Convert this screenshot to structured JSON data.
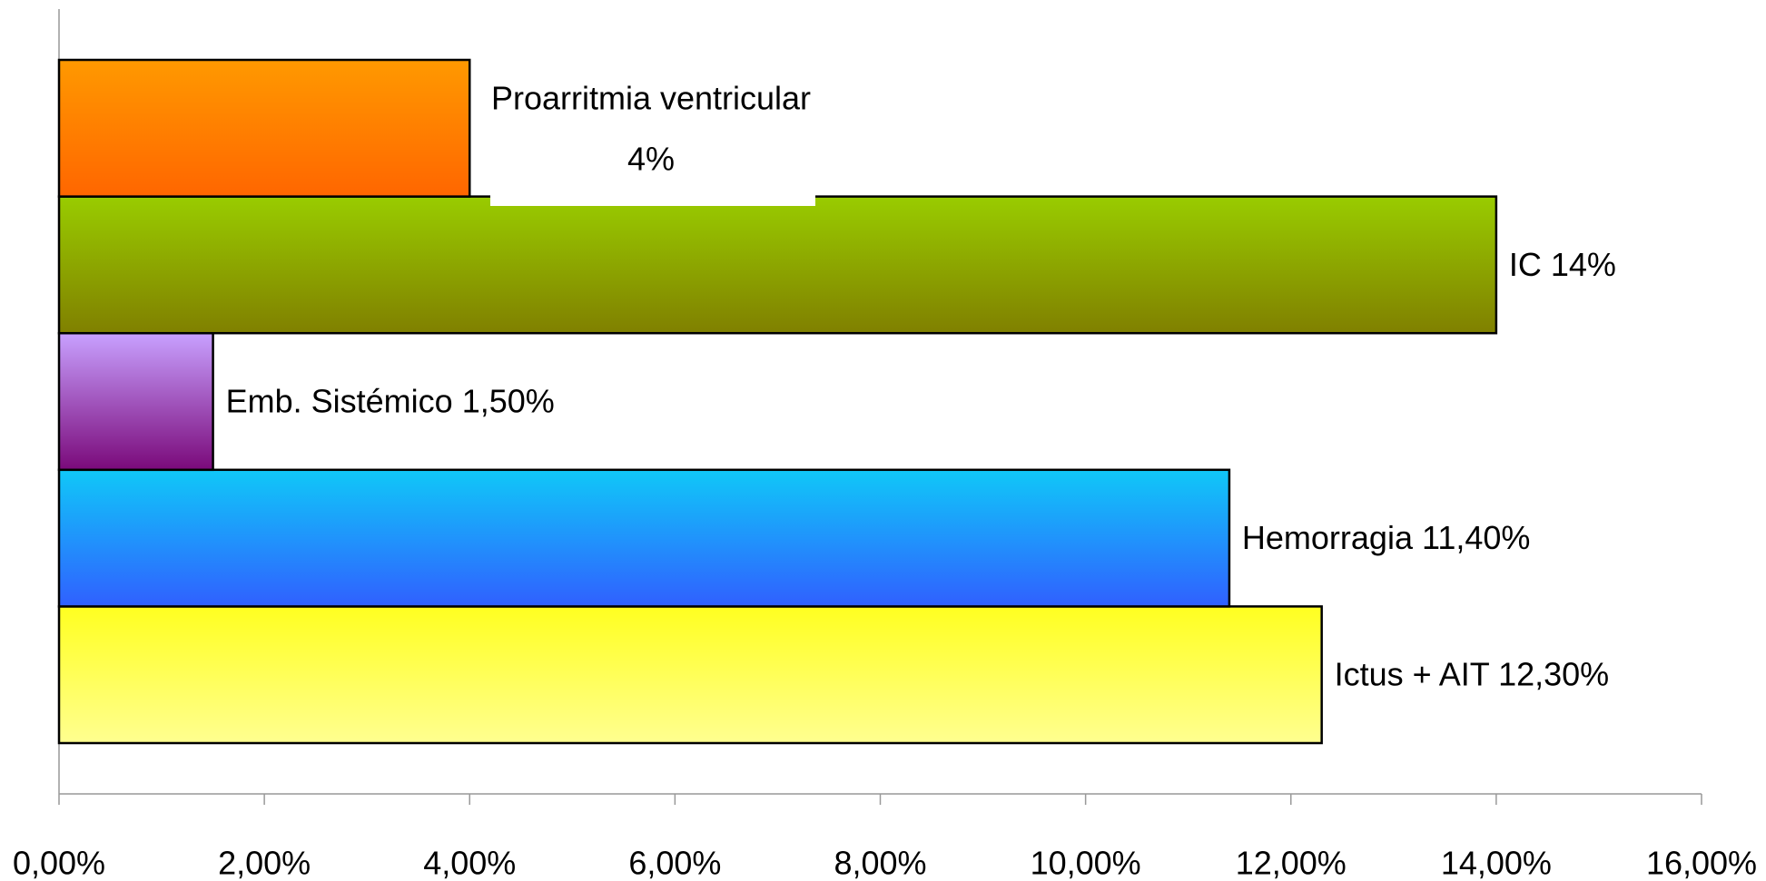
{
  "chart_data": {
    "type": "bar",
    "orientation": "horizontal",
    "categories": [
      "Ictus + AIT",
      "Hemorragia",
      "Emb. Sistémico",
      "IC",
      "Proarritmia ventricular"
    ],
    "values": [
      12.3,
      11.4,
      1.5,
      14,
      4
    ],
    "value_labels": [
      "12,30%",
      "11,40%",
      "1,50%",
      "14%",
      "4%"
    ],
    "colors": [
      [
        "#ffff20",
        "#ffff90"
      ],
      [
        "#10c8f8",
        "#3060ff"
      ],
      [
        "#c8a0ff",
        "#7a0a7a"
      ],
      [
        "#99cc00",
        "#808000"
      ],
      [
        "#ff9900",
        "#ff6600"
      ]
    ],
    "xlim": [
      0,
      16
    ],
    "xticks": [
      {
        "value": 0,
        "label": "0,00%"
      },
      {
        "value": 2,
        "label": "2,00%"
      },
      {
        "value": 4,
        "label": "4,00%"
      },
      {
        "value": 6,
        "label": "6,00%"
      },
      {
        "value": 8,
        "label": "8,00%"
      },
      {
        "value": 10,
        "label": "10,00%"
      },
      {
        "value": 12,
        "label": "12,00%"
      },
      {
        "value": 14,
        "label": "14,00%"
      },
      {
        "value": 16,
        "label": "16,00%"
      }
    ]
  }
}
